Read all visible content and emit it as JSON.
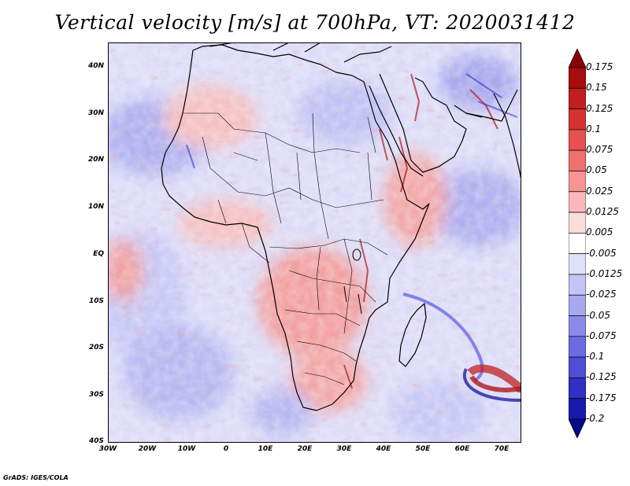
{
  "title": "Vertical velocity [m/s] at 700hPa, VT: 2020031412",
  "credit": "GrADS: IGES/COLA",
  "map": {
    "lon_range": [
      -30,
      75
    ],
    "lat_range": [
      -40,
      45
    ],
    "lat_ticks": [
      "40N",
      "30N",
      "20N",
      "10N",
      "EQ",
      "10S",
      "20S",
      "30S",
      "40S"
    ],
    "lon_ticks": [
      "30W",
      "20W",
      "10W",
      "0",
      "10E",
      "20E",
      "30E",
      "40E",
      "50E",
      "60E",
      "70E"
    ]
  },
  "colorbar": {
    "labels": [
      "0.175",
      "0.15",
      "0.125",
      "0.1",
      "0.075",
      "0.05",
      "0.025",
      "0.0125",
      "0.005",
      "-0.005",
      "-0.0125",
      "-0.025",
      "-0.05",
      "-0.075",
      "-0.1",
      "-0.125",
      "-0.175",
      "-0.2"
    ],
    "colors": [
      "#8b0000",
      "#a80c0c",
      "#c21e1e",
      "#d63232",
      "#e65050",
      "#f07070",
      "#f69494",
      "#fab8b8",
      "#fddcdc",
      "#ffffff",
      "#e0e0fb",
      "#c4c4f6",
      "#a8a8f0",
      "#8a8aea",
      "#6c6ce2",
      "#4e4ed6",
      "#3030c4",
      "#1a1aaa",
      "#0a0a8c"
    ]
  }
}
